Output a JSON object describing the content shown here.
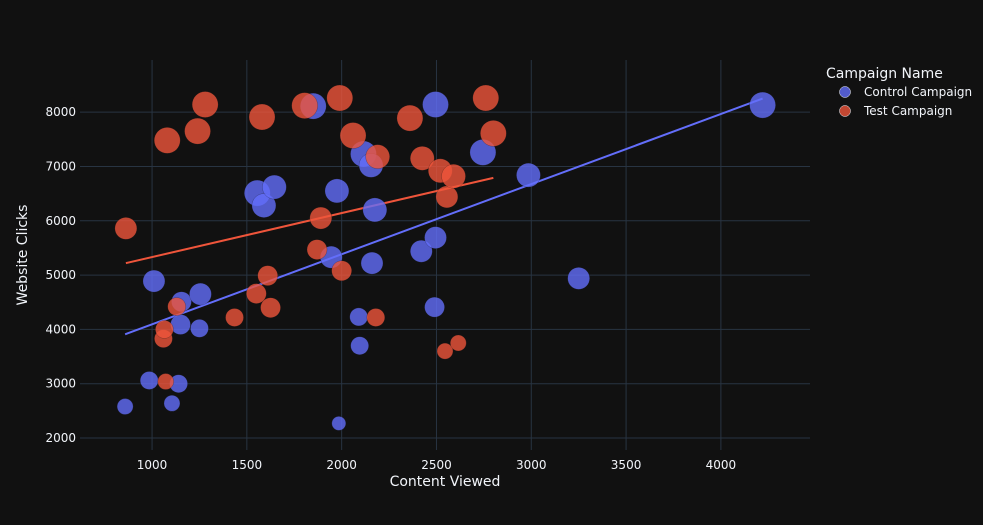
{
  "chart_data": {
    "type": "scatter",
    "xlabel": "Content Viewed",
    "ylabel": "Website Clicks",
    "xlim": [
      620,
      4470
    ],
    "ylim": [
      1780,
      8960
    ],
    "xticks": [
      1000,
      1500,
      2000,
      2500,
      3000,
      3500,
      4000
    ],
    "yticks": [
      2000,
      3000,
      4000,
      5000,
      6000,
      7000,
      8000
    ],
    "grid": true,
    "legend": {
      "title": "Campaign Name",
      "placement": "top-right"
    },
    "colors": {
      "background": "#111111",
      "grid": "#283442",
      "text": "#f2f5fa",
      "control": "#636efa",
      "test": "#ef553b"
    },
    "series": [
      {
        "name": "Control Campaign",
        "color": "#636efa",
        "points": [
          {
            "x": 858,
            "y": 2580,
            "size": 8
          },
          {
            "x": 985,
            "y": 3060,
            "size": 9
          },
          {
            "x": 1010,
            "y": 4890,
            "size": 11
          },
          {
            "x": 1105,
            "y": 2640,
            "size": 8
          },
          {
            "x": 1140,
            "y": 3000,
            "size": 9
          },
          {
            "x": 1150,
            "y": 4090,
            "size": 10
          },
          {
            "x": 1155,
            "y": 4510,
            "size": 10
          },
          {
            "x": 1250,
            "y": 4020,
            "size": 9
          },
          {
            "x": 1255,
            "y": 4650,
            "size": 11
          },
          {
            "x": 1555,
            "y": 6510,
            "size": 13
          },
          {
            "x": 1590,
            "y": 6280,
            "size": 12
          },
          {
            "x": 1645,
            "y": 6620,
            "size": 12
          },
          {
            "x": 1850,
            "y": 8110,
            "size": 13
          },
          {
            "x": 1945,
            "y": 5330,
            "size": 11
          },
          {
            "x": 1975,
            "y": 6550,
            "size": 12
          },
          {
            "x": 1985,
            "y": 2270,
            "size": 7
          },
          {
            "x": 2090,
            "y": 4230,
            "size": 9
          },
          {
            "x": 2095,
            "y": 3700,
            "size": 9
          },
          {
            "x": 2115,
            "y": 7230,
            "size": 13
          },
          {
            "x": 2155,
            "y": 7020,
            "size": 12
          },
          {
            "x": 2160,
            "y": 5220,
            "size": 11
          },
          {
            "x": 2175,
            "y": 6200,
            "size": 12
          },
          {
            "x": 2420,
            "y": 5440,
            "size": 11
          },
          {
            "x": 2490,
            "y": 4410,
            "size": 10
          },
          {
            "x": 2495,
            "y": 5690,
            "size": 11
          },
          {
            "x": 2495,
            "y": 8140,
            "size": 13
          },
          {
            "x": 2745,
            "y": 7260,
            "size": 13
          },
          {
            "x": 2985,
            "y": 6840,
            "size": 12
          },
          {
            "x": 3250,
            "y": 4940,
            "size": 11
          },
          {
            "x": 4220,
            "y": 8130,
            "size": 13
          }
        ],
        "trendline": {
          "x": [
            858,
            4220
          ],
          "y": [
            3910,
            8250
          ]
        }
      },
      {
        "name": "Test Campaign",
        "color": "#ef553b",
        "points": [
          {
            "x": 862,
            "y": 5860,
            "size": 11
          },
          {
            "x": 1060,
            "y": 3830,
            "size": 9
          },
          {
            "x": 1065,
            "y": 4000,
            "size": 9
          },
          {
            "x": 1072,
            "y": 3040,
            "size": 8
          },
          {
            "x": 1080,
            "y": 7480,
            "size": 13
          },
          {
            "x": 1130,
            "y": 4420,
            "size": 9
          },
          {
            "x": 1240,
            "y": 7650,
            "size": 13
          },
          {
            "x": 1280,
            "y": 8140,
            "size": 13
          },
          {
            "x": 1435,
            "y": 4220,
            "size": 9
          },
          {
            "x": 1550,
            "y": 4660,
            "size": 10
          },
          {
            "x": 1580,
            "y": 7910,
            "size": 13
          },
          {
            "x": 1610,
            "y": 4990,
            "size": 10
          },
          {
            "x": 1625,
            "y": 4400,
            "size": 10
          },
          {
            "x": 1805,
            "y": 8120,
            "size": 13
          },
          {
            "x": 1870,
            "y": 5470,
            "size": 10
          },
          {
            "x": 1890,
            "y": 6050,
            "size": 11
          },
          {
            "x": 1990,
            "y": 8260,
            "size": 13
          },
          {
            "x": 2000,
            "y": 5080,
            "size": 10
          },
          {
            "x": 2060,
            "y": 7570,
            "size": 13
          },
          {
            "x": 2180,
            "y": 4220,
            "size": 9
          },
          {
            "x": 2190,
            "y": 7180,
            "size": 12
          },
          {
            "x": 2360,
            "y": 7890,
            "size": 13
          },
          {
            "x": 2425,
            "y": 7150,
            "size": 12
          },
          {
            "x": 2520,
            "y": 6920,
            "size": 12
          },
          {
            "x": 2545,
            "y": 3600,
            "size": 8
          },
          {
            "x": 2555,
            "y": 6440,
            "size": 11
          },
          {
            "x": 2590,
            "y": 6820,
            "size": 12
          },
          {
            "x": 2615,
            "y": 3750,
            "size": 8
          },
          {
            "x": 2760,
            "y": 8260,
            "size": 13
          },
          {
            "x": 2800,
            "y": 7610,
            "size": 13
          }
        ],
        "trendline": {
          "x": [
            862,
            2800
          ],
          "y": [
            5220,
            6790
          ]
        }
      }
    ]
  }
}
